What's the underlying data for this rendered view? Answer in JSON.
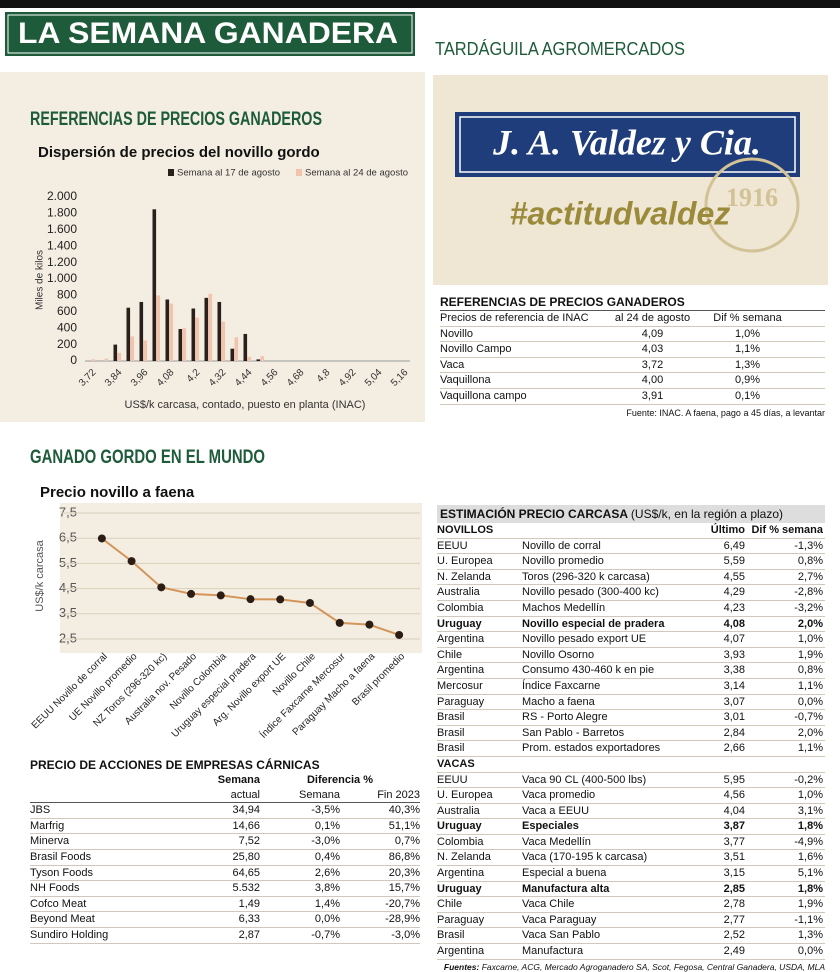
{
  "header": {
    "title": "LA SEMANA GANADERA",
    "subtitle": "TARDÁGUILA AGROMERCADOS"
  },
  "section1": {
    "heading": "REFERENCIAS DE PRECIOS GANADEROS"
  },
  "section2": {
    "heading": "GANADO GORDO EN EL MUNDO"
  },
  "ad": {
    "brand": "J. A. Valdez y Cia.",
    "slogan": "#actitudvaldez",
    "year": "1916"
  },
  "chart_data": [
    {
      "type": "bar",
      "title": "Dispersión de precios del novillo gordo",
      "ylabel": "Miles de kilos",
      "xlabel": "US$/k carcasa, contado, puesto en planta (INAC)",
      "categories": [
        "3,72",
        null,
        "3,84",
        null,
        "3,96",
        null,
        "4,08",
        null,
        "4,2",
        null,
        "4,32",
        null,
        "4,44",
        null,
        "4,56",
        null,
        "4,68",
        null,
        "4,8",
        null,
        "4,92",
        null,
        "5,04",
        null,
        "5,16"
      ],
      "series": [
        {
          "name": "Semana al 17 de agosto",
          "color": "#2a1f1a",
          "values": [
            0,
            0,
            200,
            650,
            720,
            1850,
            750,
            390,
            640,
            770,
            720,
            150,
            330,
            20,
            0,
            0,
            0,
            0,
            0,
            0,
            0,
            0,
            0,
            0,
            0
          ]
        },
        {
          "name": "Semana al 24 de agosto",
          "color": "#f2c3ad",
          "values": [
            20,
            30,
            100,
            300,
            250,
            800,
            700,
            400,
            530,
            820,
            480,
            290,
            50,
            60,
            0,
            0,
            0,
            0,
            0,
            0,
            0,
            0,
            0,
            0,
            0
          ]
        }
      ],
      "ylim": [
        0,
        2000
      ],
      "yticks": [
        0,
        200,
        400,
        600,
        800,
        {
          "value": 1000,
          "label": "1.000"
        },
        {
          "value": 1200,
          "label": "1.200"
        },
        {
          "value": 1400,
          "label": "1.400"
        },
        {
          "value": 1600,
          "label": "1.600"
        },
        {
          "value": 1800,
          "label": "1.800"
        },
        {
          "value": 2000,
          "label": "2.000"
        }
      ],
      "grid": false,
      "legend": "top-right"
    },
    {
      "type": "line",
      "title": "Precio novillo a faena",
      "ylabel": "US$/k carcasa",
      "categories": [
        "EEUU Novillo de corral",
        "UE Novillo promedio",
        "NZ Toros (296-320 kc)",
        "Australia nov. Pesado",
        "Novillo Colombia",
        "Uruguay especial pradera",
        "Arg. Novillo export UE",
        "Novillo Chile",
        "Índice Faxcarne Mercosur",
        "Paraguay Macho a faena",
        "Brasil promedio"
      ],
      "values": [
        6.49,
        5.59,
        4.55,
        4.29,
        4.23,
        4.08,
        4.07,
        3.93,
        3.14,
        3.07,
        2.66
      ],
      "color": "#d4955a",
      "marker_color": "#2b1d14",
      "ylim": [
        2.5,
        7.5
      ],
      "yticks": [
        {
          "value": 2.5,
          "label": "2,5"
        },
        {
          "value": 3.5,
          "label": "3,5"
        },
        {
          "value": 4.5,
          "label": "4,5"
        },
        {
          "value": 5.5,
          "label": "5,5"
        },
        {
          "value": 6.5,
          "label": "6,5"
        },
        {
          "value": 7.5,
          "label": "7,5"
        }
      ],
      "grid": true
    }
  ],
  "ref_table": {
    "title": "REFERENCIAS DE PRECIOS GANADEROS",
    "columns": [
      "Precios de referencia de INAC",
      "al 24 de agosto",
      "Dif % semana"
    ],
    "rows": [
      [
        "Novillo",
        "4,09",
        "1,0%"
      ],
      [
        "Novillo Campo",
        "4,03",
        "1,1%"
      ],
      [
        "Vaca",
        "3,72",
        "1,3%"
      ],
      [
        "Vaquillona",
        "4,00",
        "0,9%"
      ],
      [
        "Vaquillona campo",
        "3,91",
        "0,1%"
      ]
    ],
    "source": "Fuente: INAC. A faena, pago a 45 días, a levantar"
  },
  "shares": {
    "title": "PRECIO DE ACCIONES DE EMPRESAS CÁRNICAS",
    "header1": [
      "Semana",
      "Diferencia %"
    ],
    "header2": [
      "actual",
      "Semana",
      "Fin 2023"
    ],
    "rows": [
      [
        "JBS",
        "34,94",
        "-3,5%",
        "40,3%"
      ],
      [
        "Marfrig",
        "14,66",
        "0,1%",
        "51,1%"
      ],
      [
        "Minerva",
        "7,52",
        "-3,0%",
        "0,7%"
      ],
      [
        "Brasil Foods",
        "25,80",
        "0,4%",
        "86,8%"
      ],
      [
        "Tyson Foods",
        "64,65",
        "2,6%",
        "20,3%"
      ],
      [
        "NH Foods",
        "5.532",
        "3,8%",
        "15,7%"
      ],
      [
        "Cofco Meat",
        "1,49",
        "1,4%",
        "-20,7%"
      ],
      [
        "Beyond Meat",
        "6,33",
        "0,0%",
        "-28,9%"
      ],
      [
        "Sundiro Holding",
        "2,87",
        "-0,7%",
        "-3,0%"
      ]
    ]
  },
  "carcass": {
    "title": "ESTIMACIÓN PRECIO CARCASA",
    "title_note": "(US$/k, en la región a plazo)",
    "columns": [
      "Último",
      "Dif % semana"
    ],
    "groups": [
      {
        "name": "NOVILLOS",
        "rows": [
          {
            "cells": [
              "EEUU",
              "Novillo de corral",
              "6,49",
              "-1,3%"
            ]
          },
          {
            "cells": [
              "U. Europea",
              "Novillo promedio",
              "5,59",
              "0,8%"
            ]
          },
          {
            "cells": [
              "N. Zelanda",
              "Toros (296-320 k carcasa)",
              "4,55",
              "2,7%"
            ]
          },
          {
            "cells": [
              "Australia",
              "Novillo pesado (300-400 kc)",
              "4,29",
              "-2,8%"
            ]
          },
          {
            "cells": [
              "Colombia",
              "Machos Medellín",
              "4,23",
              "-3,2%"
            ]
          },
          {
            "cells": [
              "Uruguay",
              "Novillo especial de pradera",
              "4,08",
              "2,0%"
            ],
            "bold": true
          },
          {
            "cells": [
              "Argentina",
              "Novillo pesado export UE",
              "4,07",
              "1,0%"
            ]
          },
          {
            "cells": [
              "Chile",
              "Novillo Osorno",
              "3,93",
              "1,9%"
            ]
          },
          {
            "cells": [
              "Argentina",
              "Consumo 430-460 k en pie",
              "3,38",
              "0,8%"
            ]
          },
          {
            "cells": [
              "Mercosur",
              "Índice Faxcarne",
              "3,14",
              "1,1%"
            ]
          },
          {
            "cells": [
              "Paraguay",
              "Macho a faena",
              "3,07",
              "0,0%"
            ]
          },
          {
            "cells": [
              "Brasil",
              "RS - Porto Alegre",
              "3,01",
              "-0,7%"
            ]
          },
          {
            "cells": [
              "Brasil",
              "San Pablo - Barretos",
              "2,84",
              "2,0%"
            ]
          },
          {
            "cells": [
              "Brasil",
              "Prom. estados exportadores",
              "2,66",
              "1,1%"
            ]
          }
        ]
      },
      {
        "name": "VACAS",
        "rows": [
          {
            "cells": [
              "EEUU",
              "Vaca 90 CL (400-500 lbs)",
              "5,95",
              "-0,2%"
            ]
          },
          {
            "cells": [
              "U. Europea",
              "Vaca promedio",
              "4,56",
              "1,0%"
            ]
          },
          {
            "cells": [
              "Australia",
              "Vaca a EEUU",
              "4,04",
              "3,1%"
            ]
          },
          {
            "cells": [
              "Uruguay",
              "Especiales",
              "3,87",
              "1,8%"
            ],
            "bold": true
          },
          {
            "cells": [
              "Colombia",
              "Vaca Medellín",
              "3,77",
              "-4,9%"
            ]
          },
          {
            "cells": [
              "N. Zelanda",
              "Vaca (170-195 k carcasa)",
              "3,51",
              "1,6%"
            ]
          },
          {
            "cells": [
              "Argentina",
              "Especial a buena",
              "3,15",
              "5,1%"
            ]
          },
          {
            "cells": [
              "Uruguay",
              "Manufactura alta",
              "2,85",
              "1,8%"
            ],
            "bold": true
          },
          {
            "cells": [
              "Chile",
              "Vaca Chile",
              "2,78",
              "1,9%"
            ]
          },
          {
            "cells": [
              "Paraguay",
              "Vaca Paraguay",
              "2,77",
              "-1,1%"
            ]
          },
          {
            "cells": [
              "Brasil",
              "Vaca San Pablo",
              "2,52",
              "1,3%"
            ]
          },
          {
            "cells": [
              "Argentina",
              "Manufactura",
              "2,49",
              "0,0%"
            ]
          }
        ]
      }
    ],
    "source_label": "Fuentes:",
    "source": "Faxcarne, ACG, Mercado Agroganadero SA, Scot, Fegosa, Central Ganadera, USDA, MLA"
  }
}
